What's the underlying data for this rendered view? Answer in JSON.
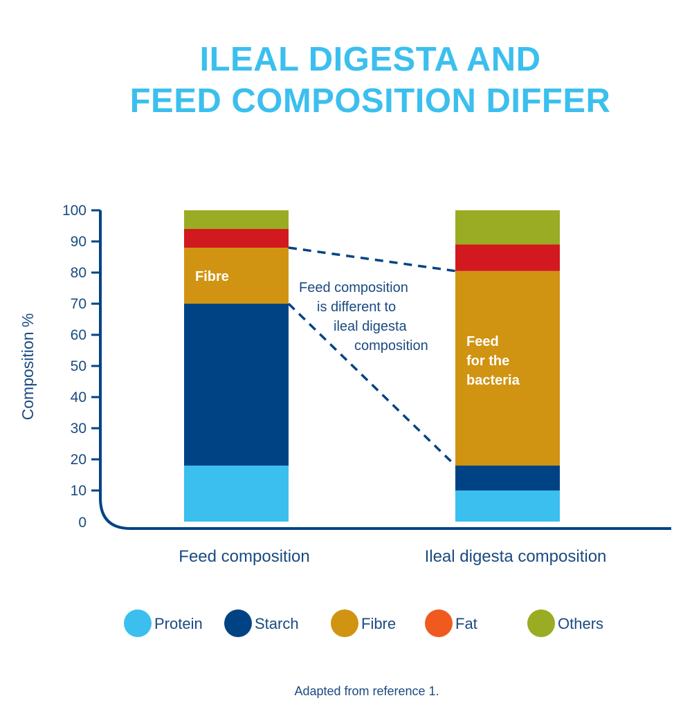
{
  "title_line1": "ILEAL DIGESTA AND",
  "title_line2": "FEED COMPOSITION DIFFER",
  "chart_data": {
    "type": "bar",
    "stacked": true,
    "ylabel": "Composition %",
    "ylim": [
      0,
      100
    ],
    "yticks": [
      0,
      10,
      20,
      30,
      40,
      50,
      60,
      70,
      80,
      90,
      100
    ],
    "categories": [
      "Feed composition",
      "Ileal digesta composition"
    ],
    "series": [
      {
        "name": "Protein",
        "color": "#3bbfee",
        "values": [
          18,
          10
        ]
      },
      {
        "name": "Starch",
        "color": "#004385",
        "values": [
          52,
          8
        ]
      },
      {
        "name": "Fibre",
        "color": "#d09412",
        "values": [
          18,
          62.5
        ]
      },
      {
        "name": "Fat",
        "color": "#d2191f",
        "values": [
          6,
          8.5
        ]
      },
      {
        "name": "Others",
        "color": "#9aac23",
        "values": [
          6,
          11
        ]
      }
    ],
    "legend": [
      {
        "name": "Protein",
        "color": "#3bbfee"
      },
      {
        "name": "Starch",
        "color": "#004385"
      },
      {
        "name": "Fibre",
        "color": "#d09412"
      },
      {
        "name": "Fat",
        "color": "#f05a1e"
      },
      {
        "name": "Others",
        "color": "#9aac23"
      }
    ],
    "legend_position": "bottom",
    "annotations": {
      "feed_fibre_label": "Fibre",
      "digesta_fibre_label": [
        "Feed",
        "for the",
        "bacteria"
      ],
      "comparison_text": [
        "Feed composition",
        "is different to",
        "ileal digesta",
        "composition"
      ]
    }
  },
  "source_note": "Adapted from reference 1."
}
